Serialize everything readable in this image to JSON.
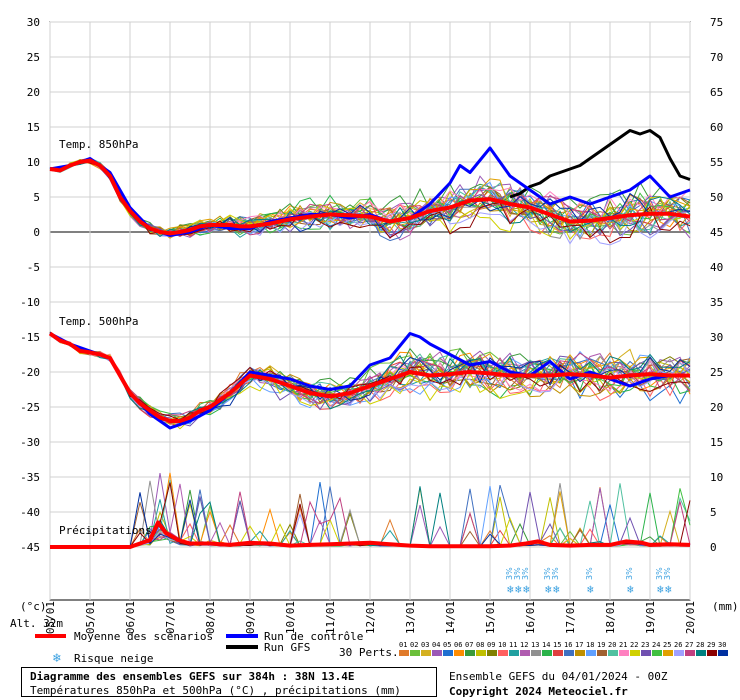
{
  "chart_data": {
    "type": "line",
    "title": "Diagramme des ensembles GEFS sur 384h : 38N 13.4E",
    "subtitle": "Températures 850hPa et 500hPa (°C) , précipitations (mm)",
    "left_axis": {
      "unit": "(°c)",
      "ticks": [
        30,
        25,
        20,
        15,
        10,
        5,
        0,
        -5,
        -10,
        -15,
        -20,
        -25,
        -30,
        -35,
        -40,
        -45
      ],
      "ylim": [
        -45,
        30
      ]
    },
    "right_axis": {
      "unit": "(mm)",
      "ticks": [
        75,
        70,
        65,
        60,
        55,
        50,
        45,
        40,
        35,
        30,
        25,
        20,
        15,
        10,
        5,
        0
      ],
      "ylim": [
        0,
        75
      ]
    },
    "x_labels": [
      "05/01",
      "06/01",
      "07/01",
      "08/01",
      "09/01",
      "10/01",
      "11/01",
      "12/01",
      "13/01",
      "14/01",
      "15/01",
      "16/01",
      "17/01",
      "18/01",
      "19/01",
      "20/01"
    ],
    "first_x_label": "05/01",
    "altitude_label": "Alt. 32m",
    "panel_labels": {
      "t850": "Temp. 850hPa",
      "t500": "Temp. 500hPa",
      "precip": "Précipitations"
    },
    "legend": {
      "mean": "Moyenne des scénarios",
      "control": "Run de contrôle",
      "gfs": "Run GFS",
      "snow": "Risque neige",
      "perts_label": "30 Perts.",
      "pert_numbers": [
        "01",
        "02",
        "03",
        "04",
        "05",
        "06",
        "07",
        "08",
        "09",
        "10",
        "11",
        "12",
        "13",
        "14",
        "15",
        "16",
        "17",
        "18",
        "19",
        "20",
        "21",
        "22",
        "23",
        "24",
        "25",
        "26",
        "27",
        "28",
        "29",
        "30"
      ],
      "pert_colors": [
        "#e07a2a",
        "#6bbf3a",
        "#d4b020",
        "#9b59b6",
        "#1f6fd0",
        "#ff8c00",
        "#3a9a3a",
        "#c0c000",
        "#808000",
        "#ff6060",
        "#20a0a0",
        "#b05cb0",
        "#909090",
        "#2ab34a",
        "#e04040",
        "#4070c0",
        "#c09000",
        "#60a0ff",
        "#a06030",
        "#50c0a0",
        "#ff80c0",
        "#d0d000",
        "#7050b0",
        "#40c040",
        "#e0a000",
        "#a0a0ff",
        "#c04080",
        "#008080",
        "#8b0000",
        "#0030a0"
      ]
    },
    "snow_marker_text": "3%",
    "snow_markers_day": [
      15.55,
      15.75,
      15.95,
      16.5,
      16.7,
      17.55,
      18.55,
      19.3,
      19.5
    ],
    "series": [
      {
        "name": "Moyenne des scénarios",
        "panel": "t850",
        "color": "#ff0000",
        "x_day": [
          4.0,
          4.25,
          4.5,
          4.75,
          5.0,
          5.25,
          5.5,
          5.75,
          6.0,
          6.25,
          6.5,
          6.75,
          7.0,
          7.25,
          7.5,
          7.75,
          8.0,
          8.25,
          8.5,
          8.75,
          9.0,
          9.25,
          9.5,
          9.75,
          10.0,
          10.5,
          11.0,
          11.5,
          12.0,
          12.5,
          13.0,
          13.5,
          14.0,
          14.5,
          15.0,
          15.5,
          16.0,
          16.5,
          17.0,
          17.5,
          18.0,
          18.5,
          19.0,
          19.5,
          20.0
        ],
        "y": [
          9.0,
          8.8,
          9.5,
          10.0,
          10.2,
          9.5,
          8.0,
          5.0,
          3.0,
          1.5,
          0.5,
          0.0,
          -0.2,
          0.0,
          0.3,
          0.8,
          1.0,
          1.0,
          1.0,
          0.8,
          0.8,
          1.0,
          1.2,
          1.5,
          1.8,
          2.2,
          2.5,
          2.4,
          2.2,
          1.5,
          2.0,
          3.0,
          3.5,
          4.5,
          4.7,
          4.0,
          3.5,
          2.5,
          1.5,
          1.6,
          2.0,
          2.4,
          2.6,
          2.6,
          2.2
        ]
      },
      {
        "name": "Run de contrôle",
        "panel": "t850",
        "color": "#0000ff",
        "x_day": [
          4.0,
          4.5,
          5.0,
          5.5,
          6.0,
          6.5,
          7.0,
          7.5,
          8.0,
          8.5,
          9.0,
          9.5,
          10.0,
          10.5,
          11.0,
          11.5,
          12.0,
          12.5,
          13.0,
          13.5,
          14.0,
          14.25,
          14.5,
          15.0,
          15.5,
          16.0,
          16.5,
          17.0,
          17.5,
          18.0,
          18.5,
          19.0,
          19.5,
          20.0
        ],
        "y": [
          9.0,
          9.5,
          10.5,
          8.5,
          3.5,
          0.5,
          -0.5,
          0.0,
          1.0,
          0.5,
          0.5,
          1.5,
          2.0,
          2.5,
          2.5,
          2.0,
          2.5,
          1.5,
          2.0,
          4.0,
          7.0,
          9.5,
          8.5,
          12.0,
          8.0,
          6.0,
          4.0,
          5.0,
          4.0,
          5.0,
          6.0,
          8.0,
          5.0,
          6.0
        ]
      },
      {
        "name": "Run GFS",
        "panel": "t850",
        "color": "#000000",
        "x_day": [
          15.5,
          15.75,
          16.0,
          16.25,
          16.5,
          16.75,
          17.0,
          17.25,
          17.5,
          17.75,
          18.0,
          18.25,
          18.5,
          18.75,
          19.0,
          19.25,
          19.5,
          19.75,
          20.0
        ],
        "y": [
          5.0,
          5.5,
          6.5,
          7.0,
          8.0,
          8.5,
          9.0,
          9.5,
          10.5,
          11.5,
          12.5,
          13.5,
          14.5,
          14.0,
          14.5,
          13.5,
          10.5,
          8.0,
          7.5
        ]
      },
      {
        "name": "Moyenne des scénarios",
        "panel": "t500",
        "color": "#ff0000",
        "x_day": [
          4.0,
          4.25,
          4.5,
          4.75,
          5.0,
          5.25,
          5.5,
          5.75,
          6.0,
          6.25,
          6.5,
          6.75,
          7.0,
          7.25,
          7.5,
          7.75,
          8.0,
          8.5,
          9.0,
          9.5,
          10.0,
          10.5,
          11.0,
          11.5,
          12.0,
          12.5,
          13.0,
          13.5,
          14.0,
          14.5,
          15.0,
          15.5,
          16.0,
          16.5,
          17.0,
          17.5,
          18.0,
          18.5,
          19.0,
          19.5,
          20.0
        ],
        "y": [
          -14.5,
          -15.5,
          -16.0,
          -17.0,
          -17.2,
          -17.5,
          -18.0,
          -20.5,
          -23.0,
          -24.5,
          -25.5,
          -26.5,
          -27.0,
          -27.0,
          -26.5,
          -25.5,
          -25.0,
          -23.0,
          -20.5,
          -21.0,
          -22.0,
          -23.0,
          -23.5,
          -23.0,
          -22.0,
          -21.0,
          -20.0,
          -20.5,
          -20.3,
          -20.0,
          -20.2,
          -20.5,
          -20.5,
          -20.5,
          -20.3,
          -20.5,
          -20.8,
          -20.5,
          -20.3,
          -20.5,
          -20.5
        ]
      },
      {
        "name": "Run de contrôle",
        "panel": "t500",
        "color": "#0000ff",
        "x_day": [
          4.0,
          4.5,
          5.0,
          5.5,
          6.0,
          6.5,
          7.0,
          7.5,
          8.0,
          8.5,
          9.0,
          9.5,
          10.0,
          10.5,
          11.0,
          11.5,
          12.0,
          12.5,
          13.0,
          13.25,
          13.5,
          14.0,
          14.5,
          15.0,
          15.5,
          16.0,
          16.5,
          17.0,
          17.5,
          18.0,
          18.5,
          19.0,
          19.5,
          20.0
        ],
        "y": [
          -14.5,
          -16.0,
          -17.0,
          -18.0,
          -23.0,
          -26.0,
          -28.0,
          -27.0,
          -25.5,
          -23.0,
          -20.0,
          -20.5,
          -21.0,
          -22.0,
          -22.5,
          -22.0,
          -19.0,
          -18.0,
          -14.5,
          -15.0,
          -16.0,
          -17.5,
          -19.0,
          -18.5,
          -20.0,
          -20.5,
          -18.5,
          -21.0,
          -20.0,
          -21.0,
          -22.0,
          -21.0,
          -20.5,
          -20.5
        ]
      },
      {
        "name": "Moyenne des scénarios",
        "panel": "precip",
        "color": "#ff0000",
        "x_day": [
          4.0,
          5.0,
          6.0,
          6.5,
          6.7,
          6.9,
          7.2,
          7.5,
          8.0,
          8.5,
          9.0,
          9.5,
          10.0,
          10.5,
          11.0,
          11.5,
          12.0,
          12.5,
          13.0,
          13.5,
          14.0,
          15.0,
          15.5,
          15.9,
          16.2,
          16.5,
          17.0,
          17.5,
          18.0,
          18.4,
          18.8,
          19.0,
          19.5,
          20.0
        ],
        "y": [
          0.0,
          0.0,
          0.0,
          1.0,
          3.5,
          2.0,
          1.0,
          0.5,
          0.5,
          0.3,
          0.6,
          0.5,
          0.2,
          0.3,
          0.4,
          0.5,
          0.6,
          0.4,
          0.2,
          0.1,
          0.1,
          0.1,
          0.2,
          0.5,
          0.8,
          0.3,
          0.2,
          0.3,
          0.3,
          0.8,
          0.6,
          0.3,
          0.4,
          0.3
        ]
      }
    ]
  }
}
